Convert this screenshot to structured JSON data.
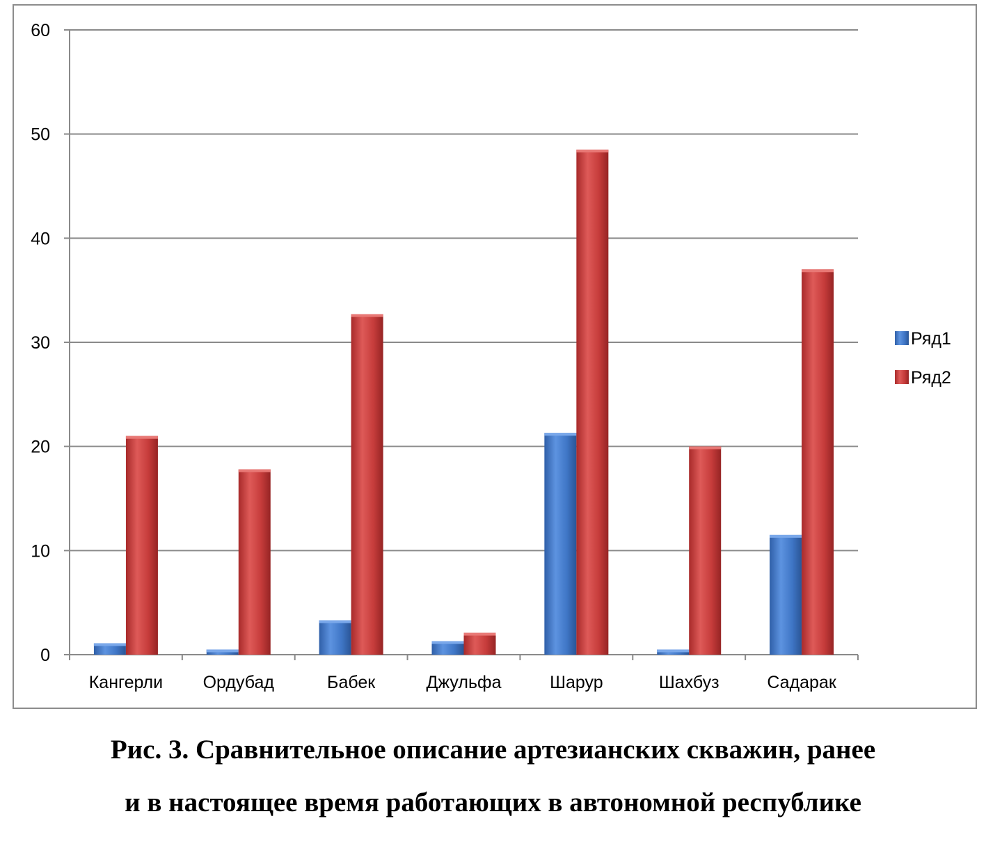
{
  "chart_data": {
    "type": "bar",
    "categories": [
      "Кангерли",
      "Ордубад",
      "Бабек",
      "Джульфа",
      "Шарур",
      "Шахбуз",
      "Садарак"
    ],
    "series": [
      {
        "name": "Ряд1",
        "color": "#4a7fd0",
        "values": [
          1.1,
          0.5,
          3.3,
          1.3,
          21.3,
          0.5,
          11.5
        ]
      },
      {
        "name": "Ряд2",
        "color": "#c9403f",
        "values": [
          21,
          17.8,
          32.7,
          2.1,
          48.5,
          20,
          37
        ]
      }
    ],
    "ylim": [
      0,
      60
    ],
    "yticks": [
      0,
      10,
      20,
      30,
      40,
      50,
      60
    ],
    "grid": true,
    "legend": "right"
  },
  "caption": {
    "line1": "Рис. 3. Сравнительное описание артезианских скважин, ранее",
    "line2": "и в настоящее время работающих в автономной республике"
  }
}
